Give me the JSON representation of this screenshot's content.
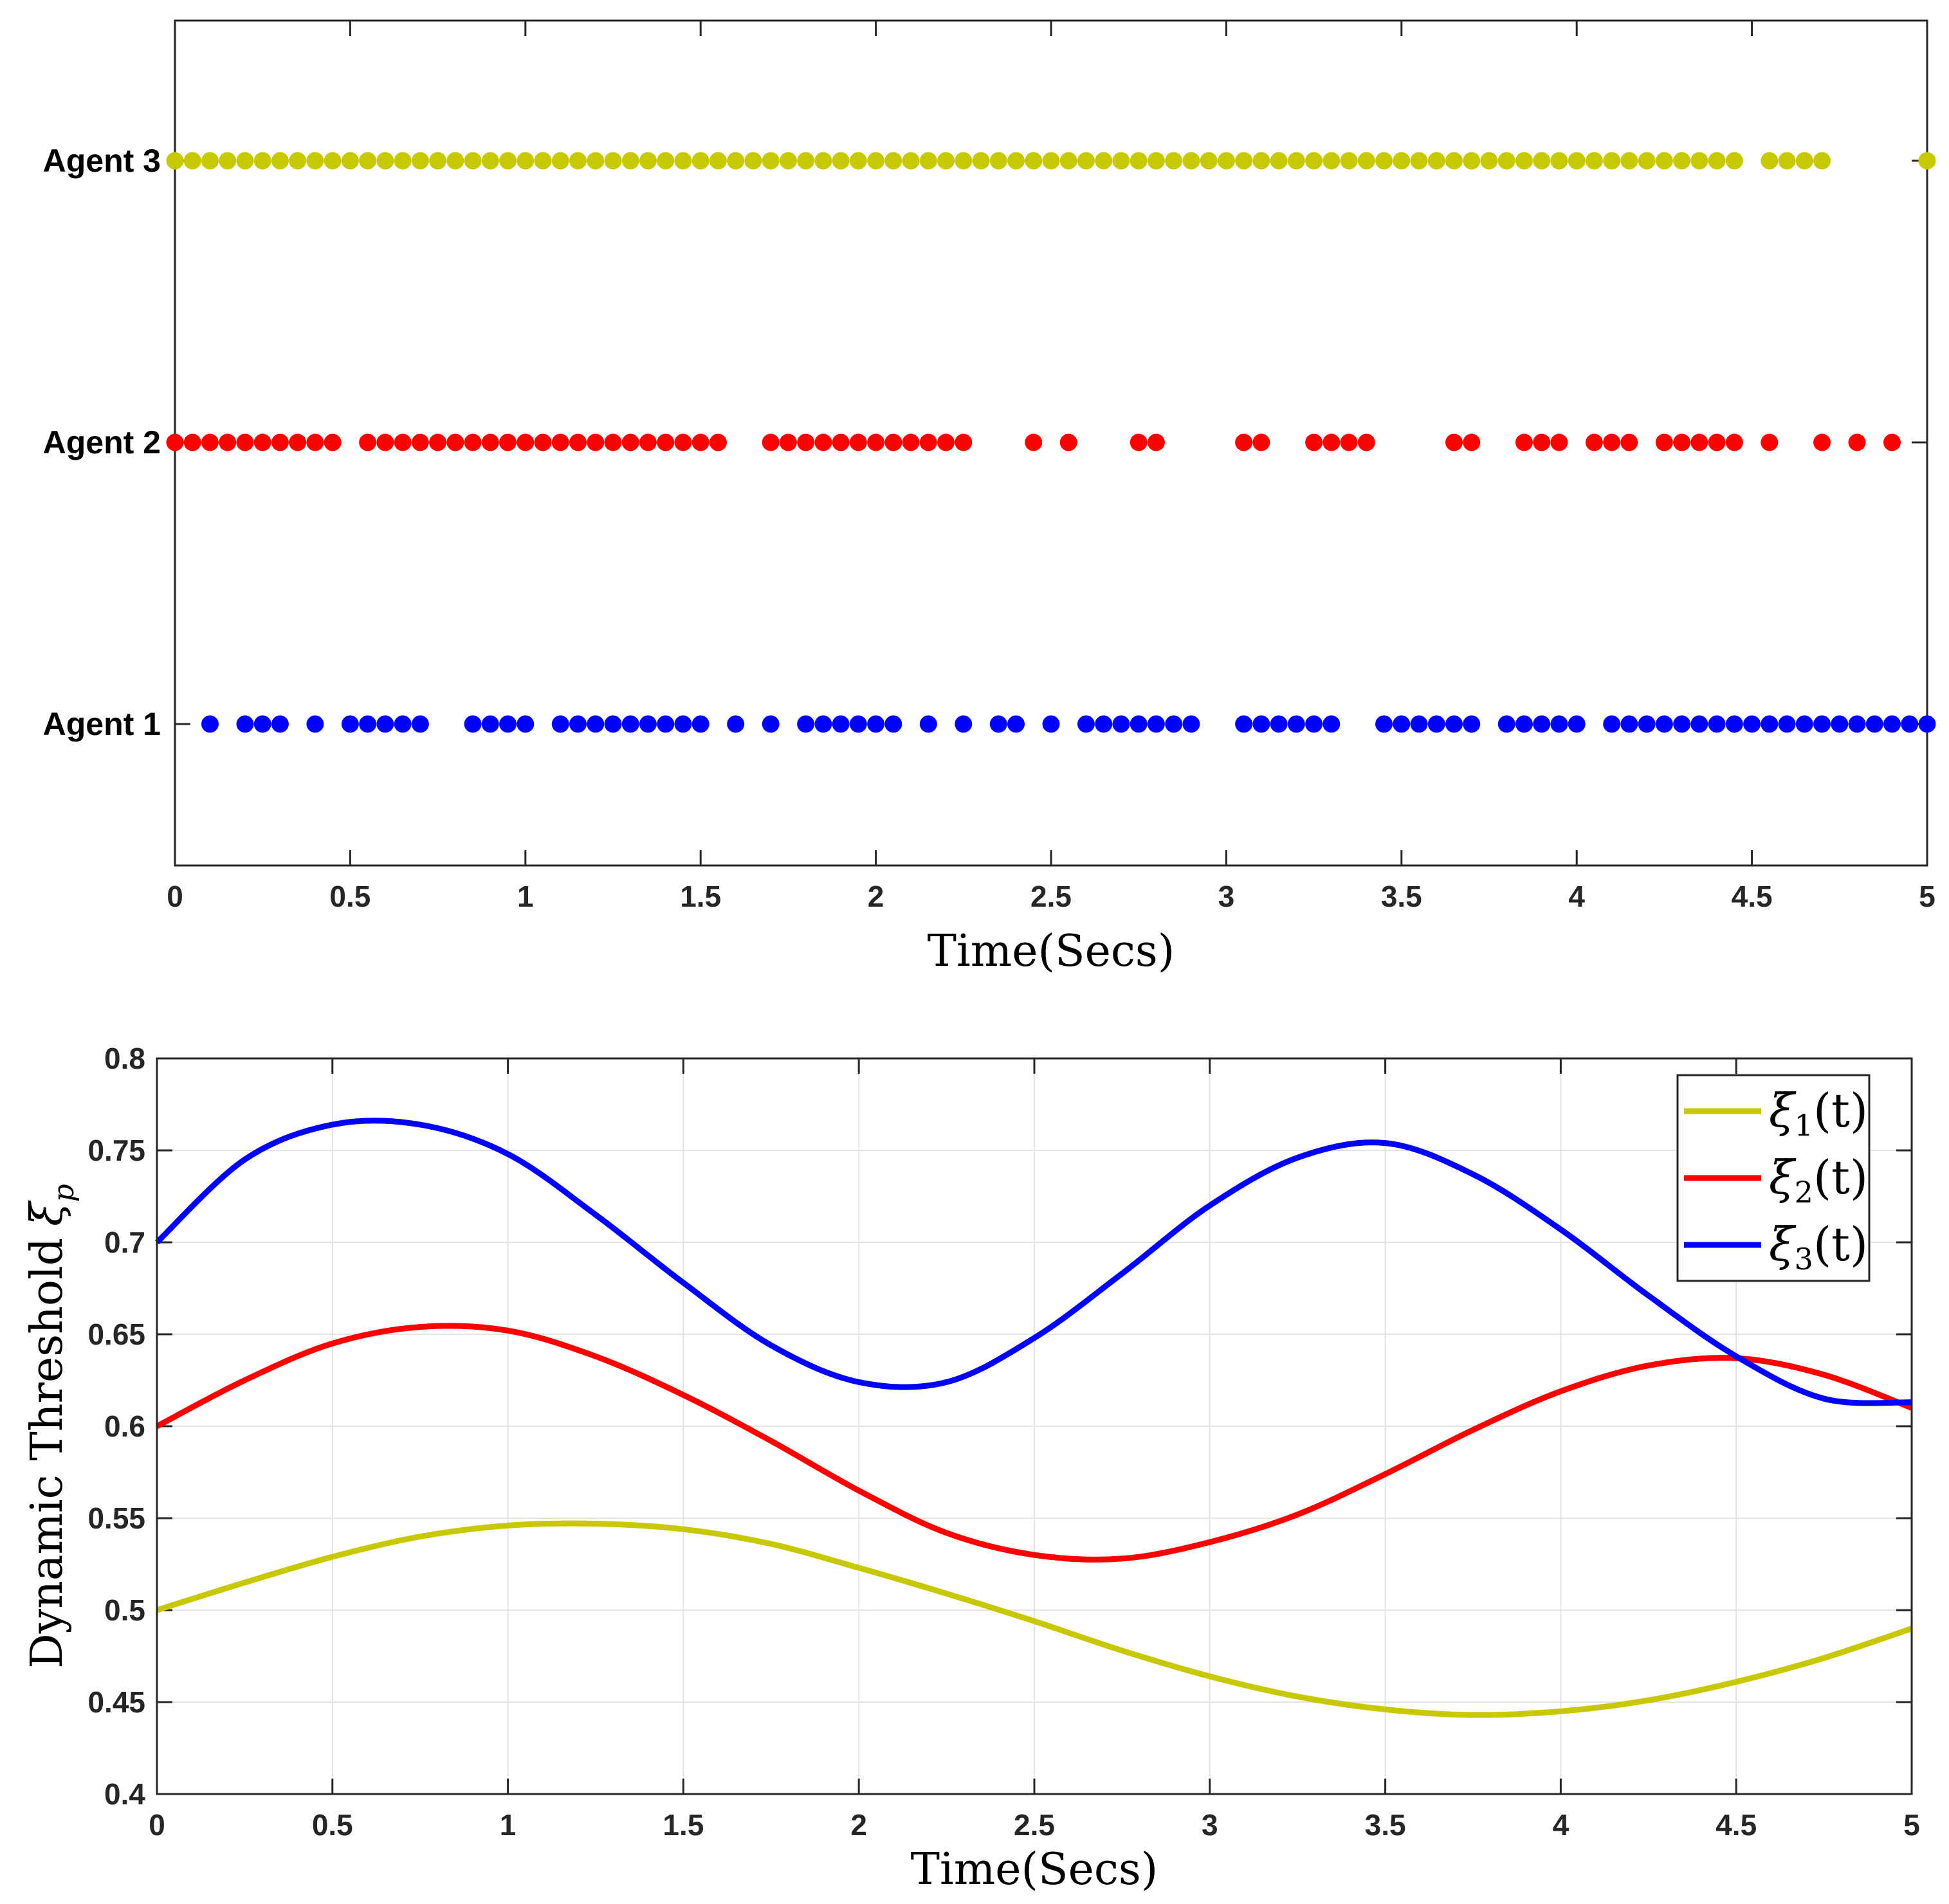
{
  "chart_data": [
    {
      "type": "scatter",
      "title": "",
      "xlabel": "Time(Secs)",
      "ylabel": "",
      "xlim": [
        0,
        5
      ],
      "xticks": [
        "0",
        "0.5",
        "1",
        "1.5",
        "2",
        "2.5",
        "3",
        "3.5",
        "4",
        "4.5",
        "5"
      ],
      "grid": false,
      "categories": [
        "Agent 1",
        "Agent 2",
        "Agent 3"
      ],
      "series": [
        {
          "name": "Agent 3",
          "color": "#C8C800",
          "x": [
            0,
            0.05,
            0.1,
            0.15,
            0.2,
            0.25,
            0.3,
            0.35,
            0.4,
            0.45,
            0.5,
            0.55,
            0.6,
            0.65,
            0.7,
            0.75,
            0.8,
            0.85,
            0.9,
            0.95,
            1,
            1.05,
            1.1,
            1.15,
            1.2,
            1.25,
            1.3,
            1.35,
            1.4,
            1.45,
            1.5,
            1.55,
            1.6,
            1.65,
            1.7,
            1.75,
            1.8,
            1.85,
            1.9,
            1.95,
            2,
            2.05,
            2.1,
            2.15,
            2.2,
            2.25,
            2.3,
            2.35,
            2.4,
            2.45,
            2.5,
            2.55,
            2.6,
            2.65,
            2.7,
            2.75,
            2.8,
            2.85,
            2.9,
            2.95,
            3,
            3.05,
            3.1,
            3.15,
            3.2,
            3.25,
            3.3,
            3.35,
            3.4,
            3.45,
            3.5,
            3.55,
            3.6,
            3.65,
            3.7,
            3.75,
            3.8,
            3.85,
            3.9,
            3.95,
            4,
            4.05,
            4.1,
            4.15,
            4.2,
            4.25,
            4.3,
            4.35,
            4.4,
            4.45,
            4.55,
            4.6,
            4.65,
            4.7,
            5
          ]
        },
        {
          "name": "Agent 2",
          "color": "#FF0000",
          "x": [
            0,
            0.05,
            0.1,
            0.15,
            0.2,
            0.25,
            0.3,
            0.35,
            0.4,
            0.45,
            0.55,
            0.6,
            0.65,
            0.7,
            0.75,
            0.8,
            0.85,
            0.9,
            0.95,
            1,
            1.05,
            1.1,
            1.15,
            1.2,
            1.25,
            1.3,
            1.35,
            1.4,
            1.45,
            1.5,
            1.55,
            1.7,
            1.75,
            1.8,
            1.85,
            1.9,
            1.95,
            2,
            2.05,
            2.1,
            2.15,
            2.2,
            2.25,
            2.45,
            2.55,
            2.75,
            2.8,
            3.05,
            3.1,
            3.25,
            3.3,
            3.35,
            3.4,
            3.65,
            3.7,
            3.85,
            3.9,
            3.95,
            4.05,
            4.1,
            4.15,
            4.25,
            4.3,
            4.35,
            4.4,
            4.45,
            4.55,
            4.7,
            4.8,
            4.9
          ]
        },
        {
          "name": "Agent 1",
          "color": "#0000FF",
          "x": [
            0.1,
            0.2,
            0.25,
            0.3,
            0.4,
            0.5,
            0.55,
            0.6,
            0.65,
            0.7,
            0.85,
            0.9,
            0.95,
            1,
            1.1,
            1.15,
            1.2,
            1.25,
            1.3,
            1.35,
            1.4,
            1.45,
            1.5,
            1.6,
            1.7,
            1.8,
            1.85,
            1.9,
            1.95,
            2,
            2.05,
            2.15,
            2.25,
            2.35,
            2.4,
            2.5,
            2.6,
            2.65,
            2.7,
            2.75,
            2.8,
            2.85,
            2.9,
            3.05,
            3.1,
            3.15,
            3.2,
            3.25,
            3.3,
            3.45,
            3.5,
            3.55,
            3.6,
            3.65,
            3.7,
            3.8,
            3.85,
            3.9,
            3.95,
            4,
            4.1,
            4.15,
            4.2,
            4.25,
            4.3,
            4.35,
            4.4,
            4.45,
            4.5,
            4.55,
            4.6,
            4.65,
            4.7,
            4.75,
            4.8,
            4.85,
            4.9,
            4.95,
            5
          ]
        }
      ]
    },
    {
      "type": "line",
      "title": "",
      "xlabel": "Time(Secs)",
      "ylabel": "Dynamic Threshold",
      "ylabel_symbol": "ξ",
      "ylabel_sub": "p",
      "xlim": [
        0,
        5
      ],
      "ylim": [
        0.4,
        0.8
      ],
      "xticks": [
        "0",
        "0.5",
        "1",
        "1.5",
        "2",
        "2.5",
        "3",
        "3.5",
        "4",
        "4.5",
        "5"
      ],
      "yticks": [
        "0.4",
        "0.45",
        "0.5",
        "0.55",
        "0.6",
        "0.65",
        "0.7",
        "0.75",
        "0.8"
      ],
      "grid": true,
      "legend": "top-right",
      "x": [
        0,
        0.25,
        0.5,
        0.75,
        1,
        1.25,
        1.5,
        1.75,
        2,
        2.25,
        2.5,
        2.75,
        3,
        3.25,
        3.5,
        3.75,
        4,
        4.25,
        4.5,
        4.75,
        5
      ],
      "series": [
        {
          "name": "ξ1(t)",
          "symbol": "ξ",
          "sub": "1",
          "arg": "(t)",
          "color": "#C8C800",
          "values": [
            0.5,
            0.515,
            0.529,
            0.54,
            0.546,
            0.547,
            0.544,
            0.536,
            0.523,
            0.509,
            0.494,
            0.478,
            0.464,
            0.453,
            0.446,
            0.443,
            0.445,
            0.451,
            0.461,
            0.474,
            0.49
          ]
        },
        {
          "name": "ξ2(t)",
          "symbol": "ξ",
          "sub": "2",
          "arg": "(t)",
          "color": "#FF0000",
          "values": [
            0.6,
            0.625,
            0.645,
            0.654,
            0.652,
            0.638,
            0.617,
            0.592,
            0.565,
            0.542,
            0.53,
            0.528,
            0.537,
            0.552,
            0.574,
            0.598,
            0.619,
            0.633,
            0.637,
            0.628,
            0.61
          ]
        },
        {
          "name": "ξ3(t)",
          "symbol": "ξ",
          "sub": "3",
          "arg": "(t)",
          "color": "#0000FF",
          "values": [
            0.7,
            0.745,
            0.764,
            0.764,
            0.748,
            0.715,
            0.678,
            0.644,
            0.624,
            0.624,
            0.648,
            0.683,
            0.72,
            0.746,
            0.754,
            0.737,
            0.707,
            0.671,
            0.638,
            0.615,
            0.613
          ]
        }
      ]
    }
  ]
}
